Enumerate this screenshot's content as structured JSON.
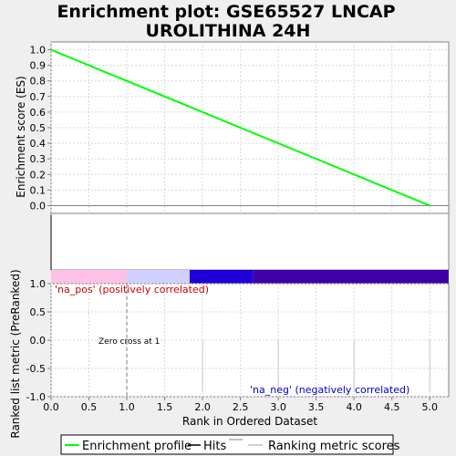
{
  "chart_data": [
    {
      "type": "line",
      "title_lines": [
        "Enrichment plot: GSE65527 LNCAP",
        "UROLITHINA 24H"
      ],
      "ylabel": "Enrichment score (ES)",
      "ylim": [
        -0.05,
        1.05
      ],
      "yticks": [
        "0.0",
        "0.1",
        "0.2",
        "0.3",
        "0.4",
        "0.5",
        "0.6",
        "0.7",
        "0.8",
        "0.9",
        "1.0"
      ],
      "ytick_values": [
        0.0,
        0.1,
        0.2,
        0.3,
        0.4,
        0.5,
        0.6,
        0.7,
        0.8,
        0.9,
        1.0
      ],
      "series": [
        {
          "name": "Enrichment profile",
          "color": "#00ff00",
          "x": [
            0,
            5
          ],
          "y": [
            1.0,
            0.0
          ]
        }
      ],
      "grid": true
    },
    {
      "type": "bar",
      "name": "ranked-list-metric",
      "xlabel": "Rank in Ordered Dataset",
      "ylabel": "Ranked list metric (PreRanked)",
      "xlim": [
        0,
        5.25
      ],
      "ylim": [
        -1.0,
        1.0
      ],
      "xticks": [
        "0.0",
        "0.5",
        "1.0",
        "1.5",
        "2.0",
        "2.5",
        "3.0",
        "3.5",
        "4.0",
        "4.5",
        "5.0"
      ],
      "xtick_values": [
        0.0,
        0.5,
        1.0,
        1.5,
        2.0,
        2.5,
        3.0,
        3.5,
        4.0,
        4.5,
        5.0
      ],
      "yticks": [
        "1.0",
        "0.5",
        "0.0",
        "-0.5",
        "-1.0"
      ],
      "ytick_values": [
        1.0,
        0.5,
        0.0,
        -0.5,
        -1.0
      ],
      "positive_label": "'na_pos' (positively correlated)",
      "negative_label": "'na_neg' (negatively correlated)",
      "zero_cross_label": "Zero cross at 1",
      "zero_cross_x": 1,
      "metric_lines_x": [
        2,
        3,
        4,
        5
      ],
      "colorbar": [
        {
          "from": 0.0,
          "to": 1.0,
          "color": "#ffc0e6"
        },
        {
          "from": 1.0,
          "to": 1.83,
          "color": "#d0d0ff"
        },
        {
          "from": 1.83,
          "to": 2.67,
          "color": "#2000d8"
        },
        {
          "from": 2.67,
          "to": 5.25,
          "color": "#4000a8"
        }
      ]
    }
  ],
  "title": [
    "Enrichment plot: GSE65527 LNCAP",
    "UROLITHINA 24H"
  ],
  "legend": {
    "items": [
      {
        "label": "Enrichment profile",
        "color": "#00ff00"
      },
      {
        "label": "Hits",
        "color": "#000000"
      },
      {
        "label": "Ranking metric scores",
        "color": "#c0c0c0"
      }
    ]
  }
}
